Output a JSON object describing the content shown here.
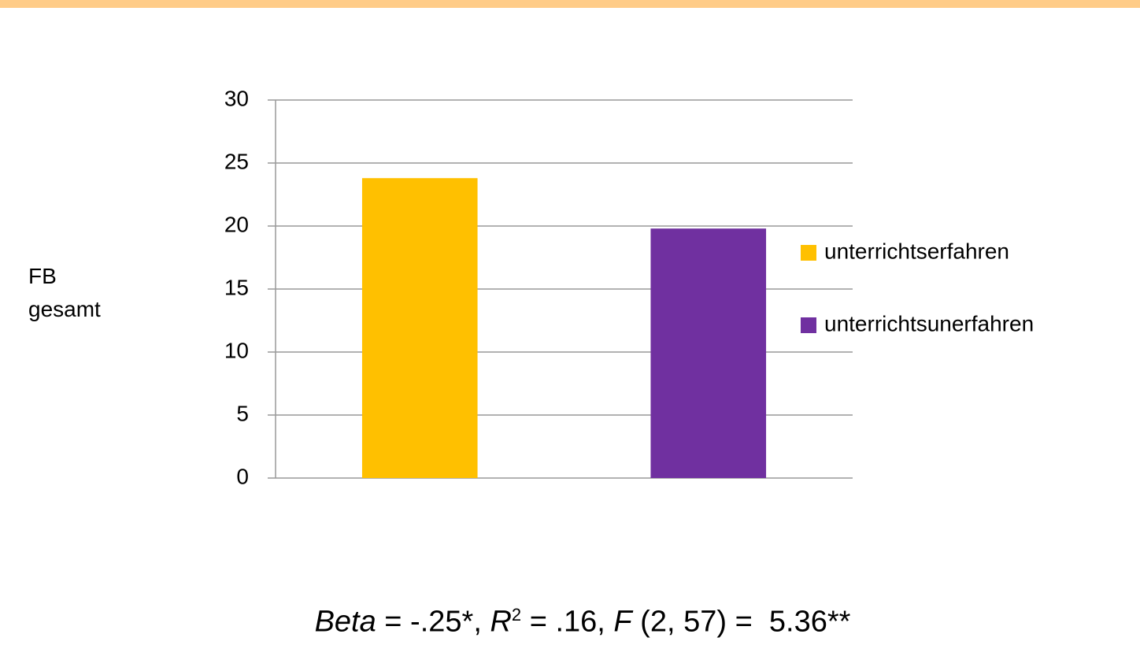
{
  "chart_data": {
    "type": "bar",
    "categories": [
      null
    ],
    "series": [
      {
        "name": "unterrichtserfahren",
        "color": "#ffc000",
        "values": [
          23.8
        ]
      },
      {
        "name": "unterrichtsunerfahren",
        "color": "#7030a0",
        "values": [
          19.8
        ]
      }
    ],
    "y_label": "FB gesamt",
    "ylim": [
      0,
      30
    ],
    "yticks": [
      0,
      5,
      10,
      15,
      20,
      25,
      30
    ],
    "grid": true,
    "legend": "right",
    "annotation": [
      "Beta",
      " = -.25*, ",
      "R",
      "2",
      " = .16, ",
      "F",
      " (2, 57) =  5.36**"
    ]
  }
}
